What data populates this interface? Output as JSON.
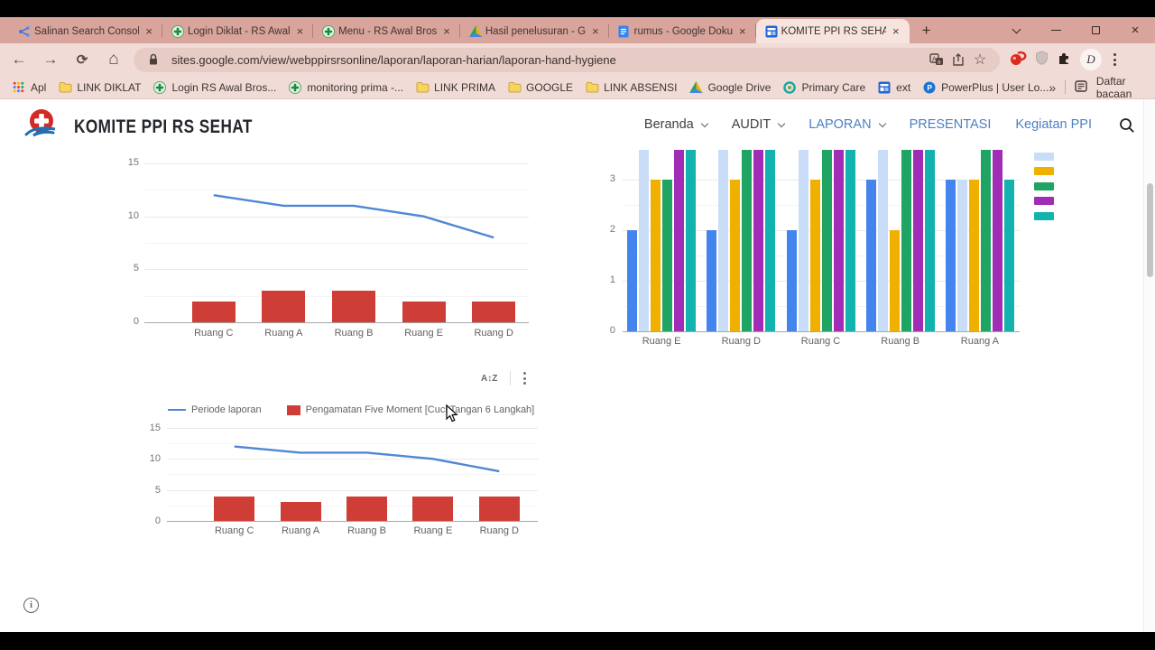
{
  "browser": {
    "tabs": [
      {
        "title": "Salinan Search Consol",
        "icon": "search-console"
      },
      {
        "title": "Login Diklat - RS Awal",
        "icon": "green-plus"
      },
      {
        "title": "Menu - RS Awal Bros",
        "icon": "green-plus"
      },
      {
        "title": "Hasil penelusuran - G",
        "icon": "drive"
      },
      {
        "title": "rumus - Google Doku",
        "icon": "docs"
      },
      {
        "title": "KOMITE PPI RS SEHAT",
        "icon": "sites",
        "active": true
      }
    ],
    "url": "sites.google.com/view/webppirsrsonline/laporan/laporan-harian/laporan-hand-hygiene",
    "profile_initial": "D",
    "new_tab_glyph": "+",
    "close_glyph": "×",
    "overflow_glyph": "»",
    "reading_list_label": "Daftar bacaan",
    "bookmarks": [
      {
        "label": "Apl",
        "icon": "apps-grid"
      },
      {
        "label": "LINK DIKLAT",
        "icon": "folder"
      },
      {
        "label": "Login RS Awal Bros...",
        "icon": "green-plus"
      },
      {
        "label": "monitoring prima -...",
        "icon": "green-plus"
      },
      {
        "label": "LINK PRIMA",
        "icon": "folder"
      },
      {
        "label": "GOOGLE",
        "icon": "folder"
      },
      {
        "label": "LINK ABSENSI",
        "icon": "folder"
      },
      {
        "label": "Google Drive",
        "icon": "drive"
      },
      {
        "label": "Primary Care",
        "icon": "primary-care"
      },
      {
        "label": "ext",
        "icon": "sites"
      },
      {
        "label": "PowerPlus | User Lo...",
        "icon": "powerplus"
      }
    ]
  },
  "site": {
    "title": "KOMITE PPI RS SEHAT",
    "nav": [
      {
        "label": "Beranda",
        "dropdown": true,
        "highlight": false
      },
      {
        "label": "AUDIT",
        "dropdown": true,
        "highlight": false
      },
      {
        "label": "LAPORAN",
        "dropdown": true,
        "highlight": true
      },
      {
        "label": "PRESENTASI",
        "dropdown": false,
        "highlight": true
      },
      {
        "label": "Kegiatan PPI",
        "dropdown": false,
        "highlight": true
      }
    ]
  },
  "colors": {
    "theme_tabbar": "#d8a49b",
    "theme_toolbar": "#f1dbd6",
    "line_blue": "#5087d5",
    "bar_red": "#cf3e36",
    "series_blue": "#4484ef",
    "series_lightblue": "#c9ddf8",
    "series_yellow": "#f0b000",
    "series_green": "#1fa463",
    "series_purple": "#a12cb5",
    "series_teal": "#12b2ae"
  },
  "chart_data": [
    {
      "id": "top_combo",
      "type": "line",
      "note": "combo chart: line + bars, legend scrolled out of view above",
      "categories": [
        "Ruang C",
        "Ruang A",
        "Ruang B",
        "Ruang E",
        "Ruang D"
      ],
      "series": [
        {
          "name": "",
          "kind": "line",
          "color": "#5087d5",
          "values": [
            12,
            11,
            11,
            10,
            8
          ]
        },
        {
          "name": "",
          "kind": "bar",
          "color": "#cf3e36",
          "values": [
            2,
            3,
            3,
            2,
            2
          ]
        }
      ],
      "yticks": [
        0,
        5,
        10,
        15
      ],
      "ylim": [
        0,
        15
      ],
      "grid": true,
      "legend_visible": false
    },
    {
      "id": "right_grouped_bar",
      "type": "bar",
      "note": "grouped bar chart, top of bars and first legend swatch clipped by scroll; clipped bars estimated at 4; legend labels cut off",
      "categories": [
        "Ruang E",
        "Ruang D",
        "Ruang C",
        "Ruang B",
        "Ruang A"
      ],
      "series": [
        {
          "name": "",
          "color": "#4484ef",
          "values": [
            2,
            2,
            2,
            3,
            3
          ]
        },
        {
          "name": "",
          "color": "#c9ddf8",
          "values": [
            4,
            4,
            4,
            4,
            3
          ]
        },
        {
          "name": "",
          "color": "#f0b000",
          "values": [
            3,
            3,
            3,
            2,
            3
          ]
        },
        {
          "name": "",
          "color": "#1fa463",
          "values": [
            3,
            4,
            4,
            4,
            4
          ]
        },
        {
          "name": "",
          "color": "#a12cb5",
          "values": [
            4,
            4,
            4,
            4,
            4
          ]
        },
        {
          "name": "",
          "color": "#12b2ae",
          "values": [
            4,
            4,
            4,
            4,
            3
          ]
        }
      ],
      "yticks": [
        0,
        1,
        2,
        3
      ],
      "ylim": [
        0,
        4
      ],
      "grid": true,
      "legend_position": "right",
      "legend_labels_visible": false
    },
    {
      "id": "bottom_combo",
      "type": "line",
      "note": "combo chart: line + bars with legend on top",
      "categories": [
        "Ruang C",
        "Ruang A",
        "Ruang B",
        "Ruang E",
        "Ruang D"
      ],
      "series": [
        {
          "name": "Periode laporan",
          "kind": "line",
          "color": "#5087d5",
          "values": [
            12,
            11,
            11,
            10,
            8
          ]
        },
        {
          "name": "Pengamatan Five Moment [Cuci Tangan 6 Langkah]",
          "kind": "bar",
          "color": "#cf3e36",
          "values": [
            4,
            3,
            4,
            4,
            4
          ]
        }
      ],
      "yticks": [
        0,
        5,
        10,
        15
      ],
      "ylim": [
        0,
        15
      ],
      "grid": true,
      "legend_visible": true,
      "legend_position": "top"
    }
  ]
}
